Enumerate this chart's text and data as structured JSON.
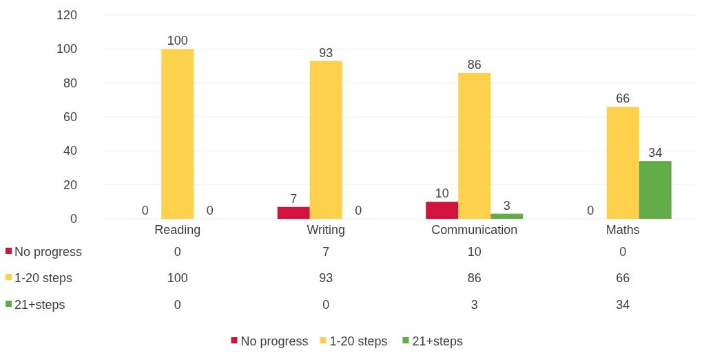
{
  "chart_data": {
    "type": "bar",
    "categories": [
      "Reading",
      "Writing",
      "Communication",
      "Maths"
    ],
    "series": [
      {
        "name": "No progress",
        "color": "#d2143c",
        "values": [
          0,
          7,
          10,
          0
        ],
        "value_labels": [
          "0",
          "7",
          "10",
          "0"
        ]
      },
      {
        "name": "1-20 steps",
        "color": "#fed14c",
        "values": [
          100,
          93,
          86,
          66
        ],
        "value_labels": [
          "100",
          "93",
          "86",
          "66"
        ]
      },
      {
        "name": "21+steps",
        "color": "#62ad47",
        "values": [
          0,
          0,
          3,
          34
        ],
        "value_labels": [
          "0",
          "0",
          "3",
          "34"
        ]
      }
    ],
    "ylim": [
      0,
      120
    ],
    "yticks": [
      0,
      20,
      40,
      60,
      80,
      100,
      120
    ],
    "grid": "y",
    "legend": "bottom",
    "annotations": [
      "0",
      "7",
      "10",
      "0",
      "100",
      "93",
      "86",
      "66",
      "0",
      "0",
      "3",
      "34"
    ]
  }
}
